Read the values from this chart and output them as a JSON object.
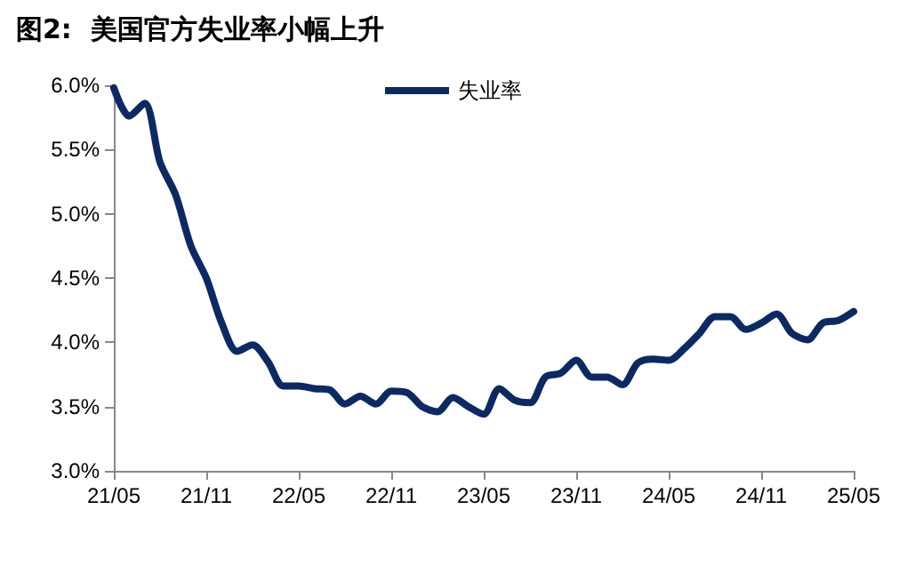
{
  "chart_data": {
    "type": "line",
    "title": "图2:  美国官方失业率小幅上升",
    "categories": [
      "21/05",
      null,
      null,
      null,
      null,
      null,
      "21/11",
      null,
      null,
      null,
      null,
      null,
      "22/05",
      null,
      null,
      null,
      null,
      null,
      "22/11",
      null,
      null,
      null,
      null,
      null,
      "23/05",
      null,
      null,
      null,
      null,
      null,
      "23/11",
      null,
      null,
      null,
      null,
      null,
      "24/05",
      null,
      null,
      null,
      null,
      null,
      "24/11",
      null,
      null,
      null,
      null,
      null,
      "25/05"
    ],
    "series": [
      {
        "name": "失业率",
        "color": "#0b2a63",
        "values": [
          5.98,
          5.76,
          5.86,
          5.4,
          5.15,
          4.75,
          4.5,
          4.15,
          3.93,
          3.98,
          3.85,
          3.66,
          3.66,
          3.64,
          3.63,
          3.52,
          3.58,
          3.52,
          3.62,
          3.61,
          3.5,
          3.46,
          3.57,
          3.5,
          3.44,
          3.64,
          3.55,
          3.53,
          3.73,
          3.76,
          3.86,
          3.73,
          3.73,
          3.67,
          3.84,
          3.87,
          3.86,
          3.95,
          4.07,
          4.2,
          4.2,
          4.1,
          4.15,
          4.22,
          4.07,
          4.02,
          4.15,
          4.17,
          4.24
        ]
      }
    ],
    "ylim": [
      3.0,
      6.0
    ],
    "yticks": [
      {
        "value": 3.0,
        "label": "3.0%"
      },
      {
        "value": 3.5,
        "label": "3.5%"
      },
      {
        "value": 4.0,
        "label": "4.0%"
      },
      {
        "value": 4.5,
        "label": "4.5%"
      },
      {
        "value": 5.0,
        "label": "5.0%"
      },
      {
        "value": 5.5,
        "label": "5.5%"
      },
      {
        "value": 6.0,
        "label": "6.0%"
      }
    ],
    "legend": "top",
    "grid": false,
    "marker": "none",
    "line_style": "solid"
  }
}
